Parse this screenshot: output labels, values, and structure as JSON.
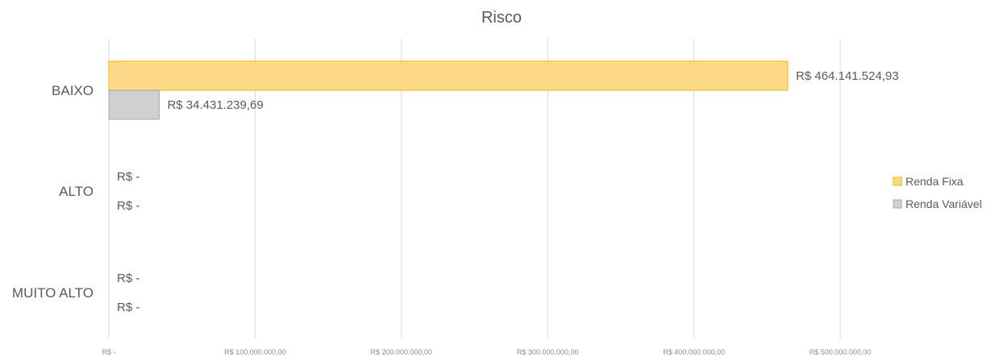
{
  "chart_data": {
    "type": "bar",
    "orientation": "horizontal",
    "title": "Risco",
    "categories": [
      "BAIXO",
      "ALTO",
      "MUITO ALTO"
    ],
    "series": [
      {
        "name": "Renda Fixa",
        "values": [
          464141524.93,
          0,
          0
        ],
        "labels": [
          "R$ 464.141.524,93",
          "R$ -",
          "R$ -"
        ],
        "fill": "#FFD98A",
        "stroke": "#F2B600"
      },
      {
        "name": "Renda Variável",
        "values": [
          34431239.69,
          0,
          0
        ],
        "labels": [
          "R$ 34.431.239,69",
          "R$ -",
          "R$ -"
        ],
        "fill": "#D0D0D0",
        "stroke": "#A6A6A6"
      }
    ],
    "xlim": [
      0,
      500000000
    ],
    "x_ticks": [
      0,
      100000000,
      200000000,
      300000000,
      400000000,
      500000000
    ],
    "x_tick_labels": [
      "R$ -",
      "R$ 100.000.000,00",
      "R$ 200.000.000,00",
      "R$ 300.000.000,00",
      "R$ 400.000.000,00",
      "R$ 500.000.000,00"
    ],
    "grid": true,
    "legend_position": "right",
    "colors": {
      "grid": "#D9D9D9",
      "text": "#595959"
    }
  }
}
